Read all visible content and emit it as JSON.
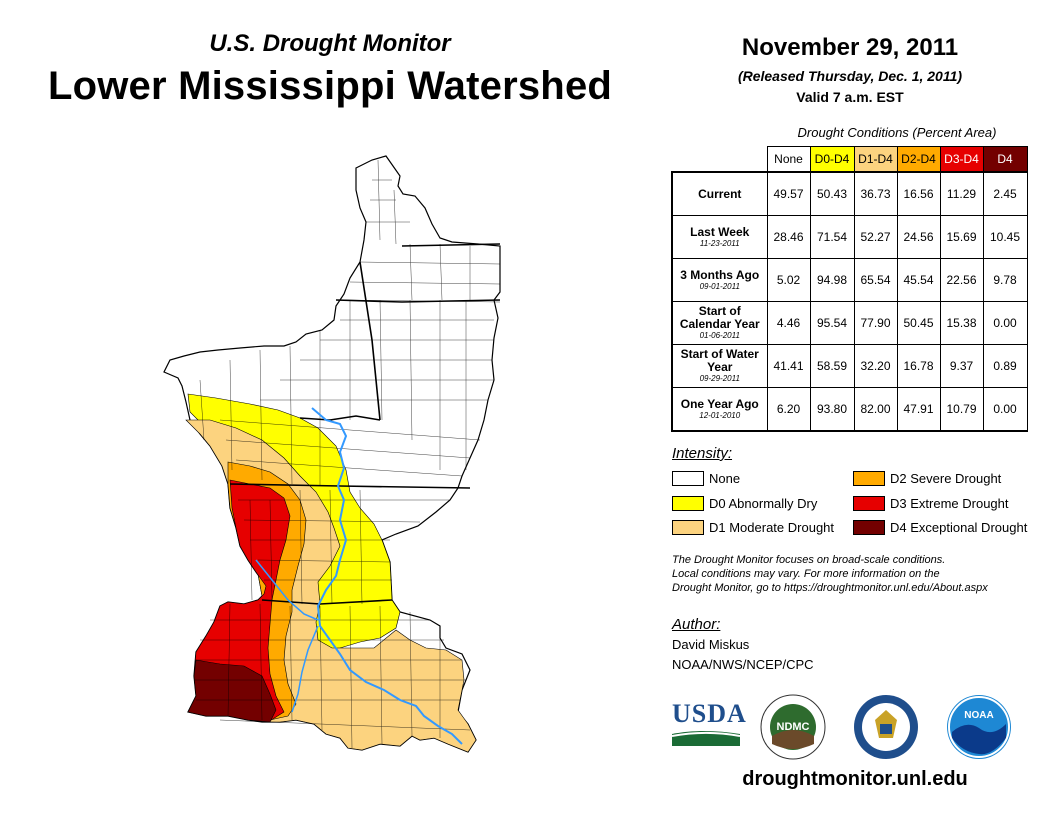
{
  "header": {
    "subtitle": "U.S. Drought Monitor",
    "title": "Lower Mississippi Watershed",
    "date": "November 29, 2011",
    "released": "(Released Thursday, Dec. 1, 2011)",
    "valid": "Valid 7 a.m. EST"
  },
  "table": {
    "caption": "Drought Conditions (Percent Area)",
    "columns": [
      "None",
      "D0-D4",
      "D1-D4",
      "D2-D4",
      "D3-D4",
      "D4"
    ],
    "column_colors": [
      "#ffffff",
      "#ffff00",
      "#fcd37f",
      "#ffaa00",
      "#e60000",
      "#730000"
    ],
    "rows": [
      {
        "label": "Current",
        "sublabel": "",
        "values": [
          "49.57",
          "50.43",
          "36.73",
          "16.56",
          "11.29",
          "2.45"
        ]
      },
      {
        "label": "Last Week",
        "sublabel": "11-23-2011",
        "values": [
          "28.46",
          "71.54",
          "52.27",
          "24.56",
          "15.69",
          "10.45"
        ]
      },
      {
        "label": "3 Months Ago",
        "sublabel": "09-01-2011",
        "values": [
          "5.02",
          "94.98",
          "65.54",
          "45.54",
          "22.56",
          "9.78"
        ]
      },
      {
        "label": "Start of Calendar Year",
        "sublabel": "01-06-2011",
        "values": [
          "4.46",
          "95.54",
          "77.90",
          "50.45",
          "15.38",
          "0.00"
        ]
      },
      {
        "label": "Start of Water Year",
        "sublabel": "09-29-2011",
        "values": [
          "41.41",
          "58.59",
          "32.20",
          "16.78",
          "9.37",
          "0.89"
        ]
      },
      {
        "label": "One Year Ago",
        "sublabel": "12-01-2010",
        "values": [
          "6.20",
          "93.80",
          "82.00",
          "47.91",
          "10.79",
          "0.00"
        ]
      }
    ]
  },
  "legend": {
    "title": "Intensity:",
    "items": [
      {
        "label": "None",
        "color": "#ffffff"
      },
      {
        "label": "D0 Abnormally Dry",
        "color": "#ffff00"
      },
      {
        "label": "D1 Moderate Drought",
        "color": "#fcd37f"
      },
      {
        "label": "D2 Severe Drought",
        "color": "#ffaa00"
      },
      {
        "label": "D3 Extreme Drought",
        "color": "#e60000"
      },
      {
        "label": "D4 Exceptional Drought",
        "color": "#730000"
      }
    ]
  },
  "note": {
    "line1": "The Drought Monitor focuses on broad-scale conditions.",
    "line2": "Local conditions may vary. For more information on the",
    "line3": "Drought Monitor, go to https://droughtmonitor.unl.edu/About.aspx"
  },
  "author": {
    "title": "Author:",
    "name": "David Miskus",
    "org": "NOAA/NWS/NCEP/CPC"
  },
  "logos": {
    "usda": "USDA",
    "ndmc": "NDMC",
    "noaa": "NOAA"
  },
  "website": "droughtmonitor.unl.edu",
  "map_colors": {
    "none": "#ffffff",
    "d0": "#ffff00",
    "d1": "#fcd37f",
    "d2": "#ffaa00",
    "d3": "#e60000",
    "d4": "#730000",
    "river": "#3399ff"
  }
}
